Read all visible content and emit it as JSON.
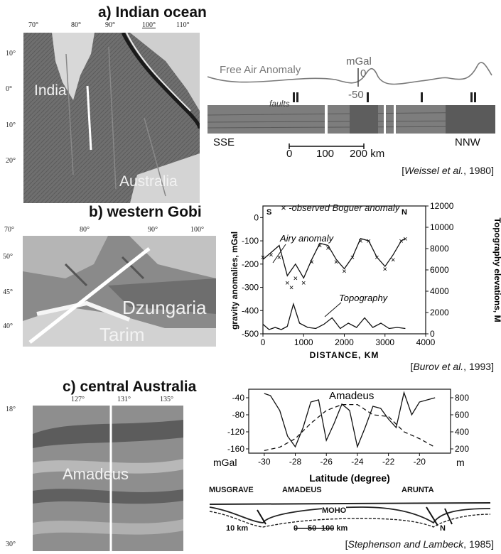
{
  "panel_a": {
    "title": "a) Indian ocean",
    "lon_ticks": [
      "70°",
      "80°",
      "90°",
      "100°",
      "110°"
    ],
    "lat_ticks": [
      "10°",
      "0°",
      "10°",
      "20°"
    ],
    "map_labels": {
      "india": "India",
      "australia": "Australia"
    },
    "profile": {
      "curve_label": "Free Air Anomaly",
      "unit": "mGal",
      "scale_ticks": [
        "0",
        "-50"
      ],
      "faults_label": "faults",
      "left_end": "SSE",
      "right_end": "NNW",
      "scale_bar": [
        "0",
        "100",
        "200 km"
      ]
    },
    "citation_authors": "Weissel et al.",
    "citation_year": ", 1980]"
  },
  "panel_b": {
    "title": "b) western Gobi",
    "lon_ticks": [
      "70°",
      "80°",
      "90°",
      "100°"
    ],
    "lat_ticks": [
      "50°",
      "45°",
      "40°"
    ],
    "map_labels": {
      "dzungaria": "Dzungaria",
      "tarim": "Tarim"
    },
    "legend": "× -observed Boguer anomaly",
    "citation_authors": "Burov et al.",
    "citation_year": ", 1993]"
  },
  "panel_c": {
    "title": "c) central Australia",
    "lon_ticks": [
      "127°",
      "131°",
      "135°"
    ],
    "lat_ticks": [
      "18°",
      "30°"
    ],
    "map_label": "Amadeus",
    "section_labels": [
      "MUSGRAVE",
      "AMADEUS",
      "ARUNTA"
    ],
    "moho_label": "MOHO",
    "section_scale": [
      "10 km",
      "0",
      "50",
      "100 km"
    ],
    "north": "N",
    "citation_authors": "Stephenson and Lambeck",
    "citation_year": ", 1985]"
  },
  "chart_data": [
    {
      "type": "line",
      "xlabel": "DISTANCE, KM",
      "ylabel": "gravity anomalies, mGal",
      "y2label": "Topography elevations, M",
      "xlim": [
        0,
        4000
      ],
      "ylim": [
        -500,
        50
      ],
      "y2lim": [
        0,
        12000
      ],
      "x_ticks": [
        "0",
        "1000",
        "2000",
        "3000",
        "4000"
      ],
      "y_ticks": [
        "0",
        "-100",
        "-200",
        "-300",
        "-400",
        "-500"
      ],
      "y2_ticks": [
        "12000",
        "10000",
        "8000",
        "6000",
        "4000",
        "2000",
        "0"
      ],
      "end_labels": [
        "S",
        "N"
      ],
      "annotations": [
        "Airy anomaly",
        "Topography"
      ],
      "series": [
        {
          "name": "Airy anomaly",
          "x": [
            0,
            200,
            400,
            600,
            800,
            1000,
            1200,
            1400,
            1600,
            1800,
            2000,
            2200,
            2400,
            2600,
            2800,
            3000,
            3200,
            3400,
            3500
          ],
          "values": [
            -180,
            -150,
            -120,
            -250,
            -200,
            -260,
            -180,
            -110,
            -120,
            -180,
            -220,
            -170,
            -90,
            -100,
            -170,
            -210,
            -160,
            -100,
            -90
          ]
        },
        {
          "name": "observed Boguer anomaly",
          "x": [
            0,
            200,
            400,
            600,
            700,
            800,
            1000,
            1200,
            1400,
            1600,
            1800,
            2000,
            2200,
            2400,
            2600,
            2800,
            3000,
            3200,
            3400,
            3500
          ],
          "values": [
            -170,
            -160,
            -170,
            -280,
            -300,
            -260,
            -280,
            -190,
            -120,
            -130,
            -190,
            -230,
            -170,
            -100,
            -100,
            -170,
            -220,
            -180,
            -100,
            -90
          ]
        },
        {
          "name": "Topography",
          "axis": "right",
          "x": [
            0,
            150,
            300,
            450,
            600,
            750,
            900,
            1100,
            1300,
            1500,
            1700,
            1900,
            2100,
            2300,
            2500,
            2700,
            2900,
            3100,
            3300,
            3500
          ],
          "values": [
            900,
            400,
            600,
            400,
            700,
            2800,
            1000,
            600,
            500,
            900,
            1500,
            500,
            1000,
            600,
            1500,
            600,
            1000,
            500,
            600,
            500
          ]
        }
      ]
    },
    {
      "type": "line",
      "xlabel": "Latitude (degree)",
      "ylabel": "mGal",
      "y2label": "m",
      "xlim": [
        -31,
        -18
      ],
      "ylim": [
        -170,
        -20
      ],
      "y2lim": [
        150,
        900
      ],
      "x_ticks": [
        "-30",
        "-28",
        "-26",
        "-24",
        "-22",
        "-20"
      ],
      "y_ticks": [
        "-40",
        "-80",
        "-120",
        "-160"
      ],
      "y2_ticks": [
        "800",
        "600",
        "400",
        "200"
      ],
      "annotations": [
        "Amadeus"
      ],
      "series": [
        {
          "name": "",
          "x": [
            -30,
            -29.6,
            -29,
            -28.5,
            -28,
            -27.5,
            -27,
            -26.5,
            -26,
            -25.5,
            -25,
            -24.5,
            -24,
            -23.5,
            -23,
            -22.5,
            -22,
            -21.5,
            -21,
            -20.5,
            -20,
            -19.5,
            -19
          ],
          "values": [
            -30,
            -35,
            -70,
            -130,
            -155,
            -110,
            -50,
            -45,
            -140,
            -100,
            -55,
            -70,
            -155,
            -110,
            -60,
            -65,
            -90,
            -110,
            -28,
            -80,
            -50,
            -45,
            -40
          ]
        },
        {
          "name": "",
          "axis": "right",
          "x": [
            -30,
            -29,
            -28,
            -27,
            -26,
            -25,
            -24,
            -23,
            -22,
            -21,
            -20,
            -19
          ],
          "values": [
            180,
            220,
            320,
            500,
            650,
            720,
            720,
            600,
            580,
            400,
            320,
            220
          ]
        }
      ]
    }
  ]
}
